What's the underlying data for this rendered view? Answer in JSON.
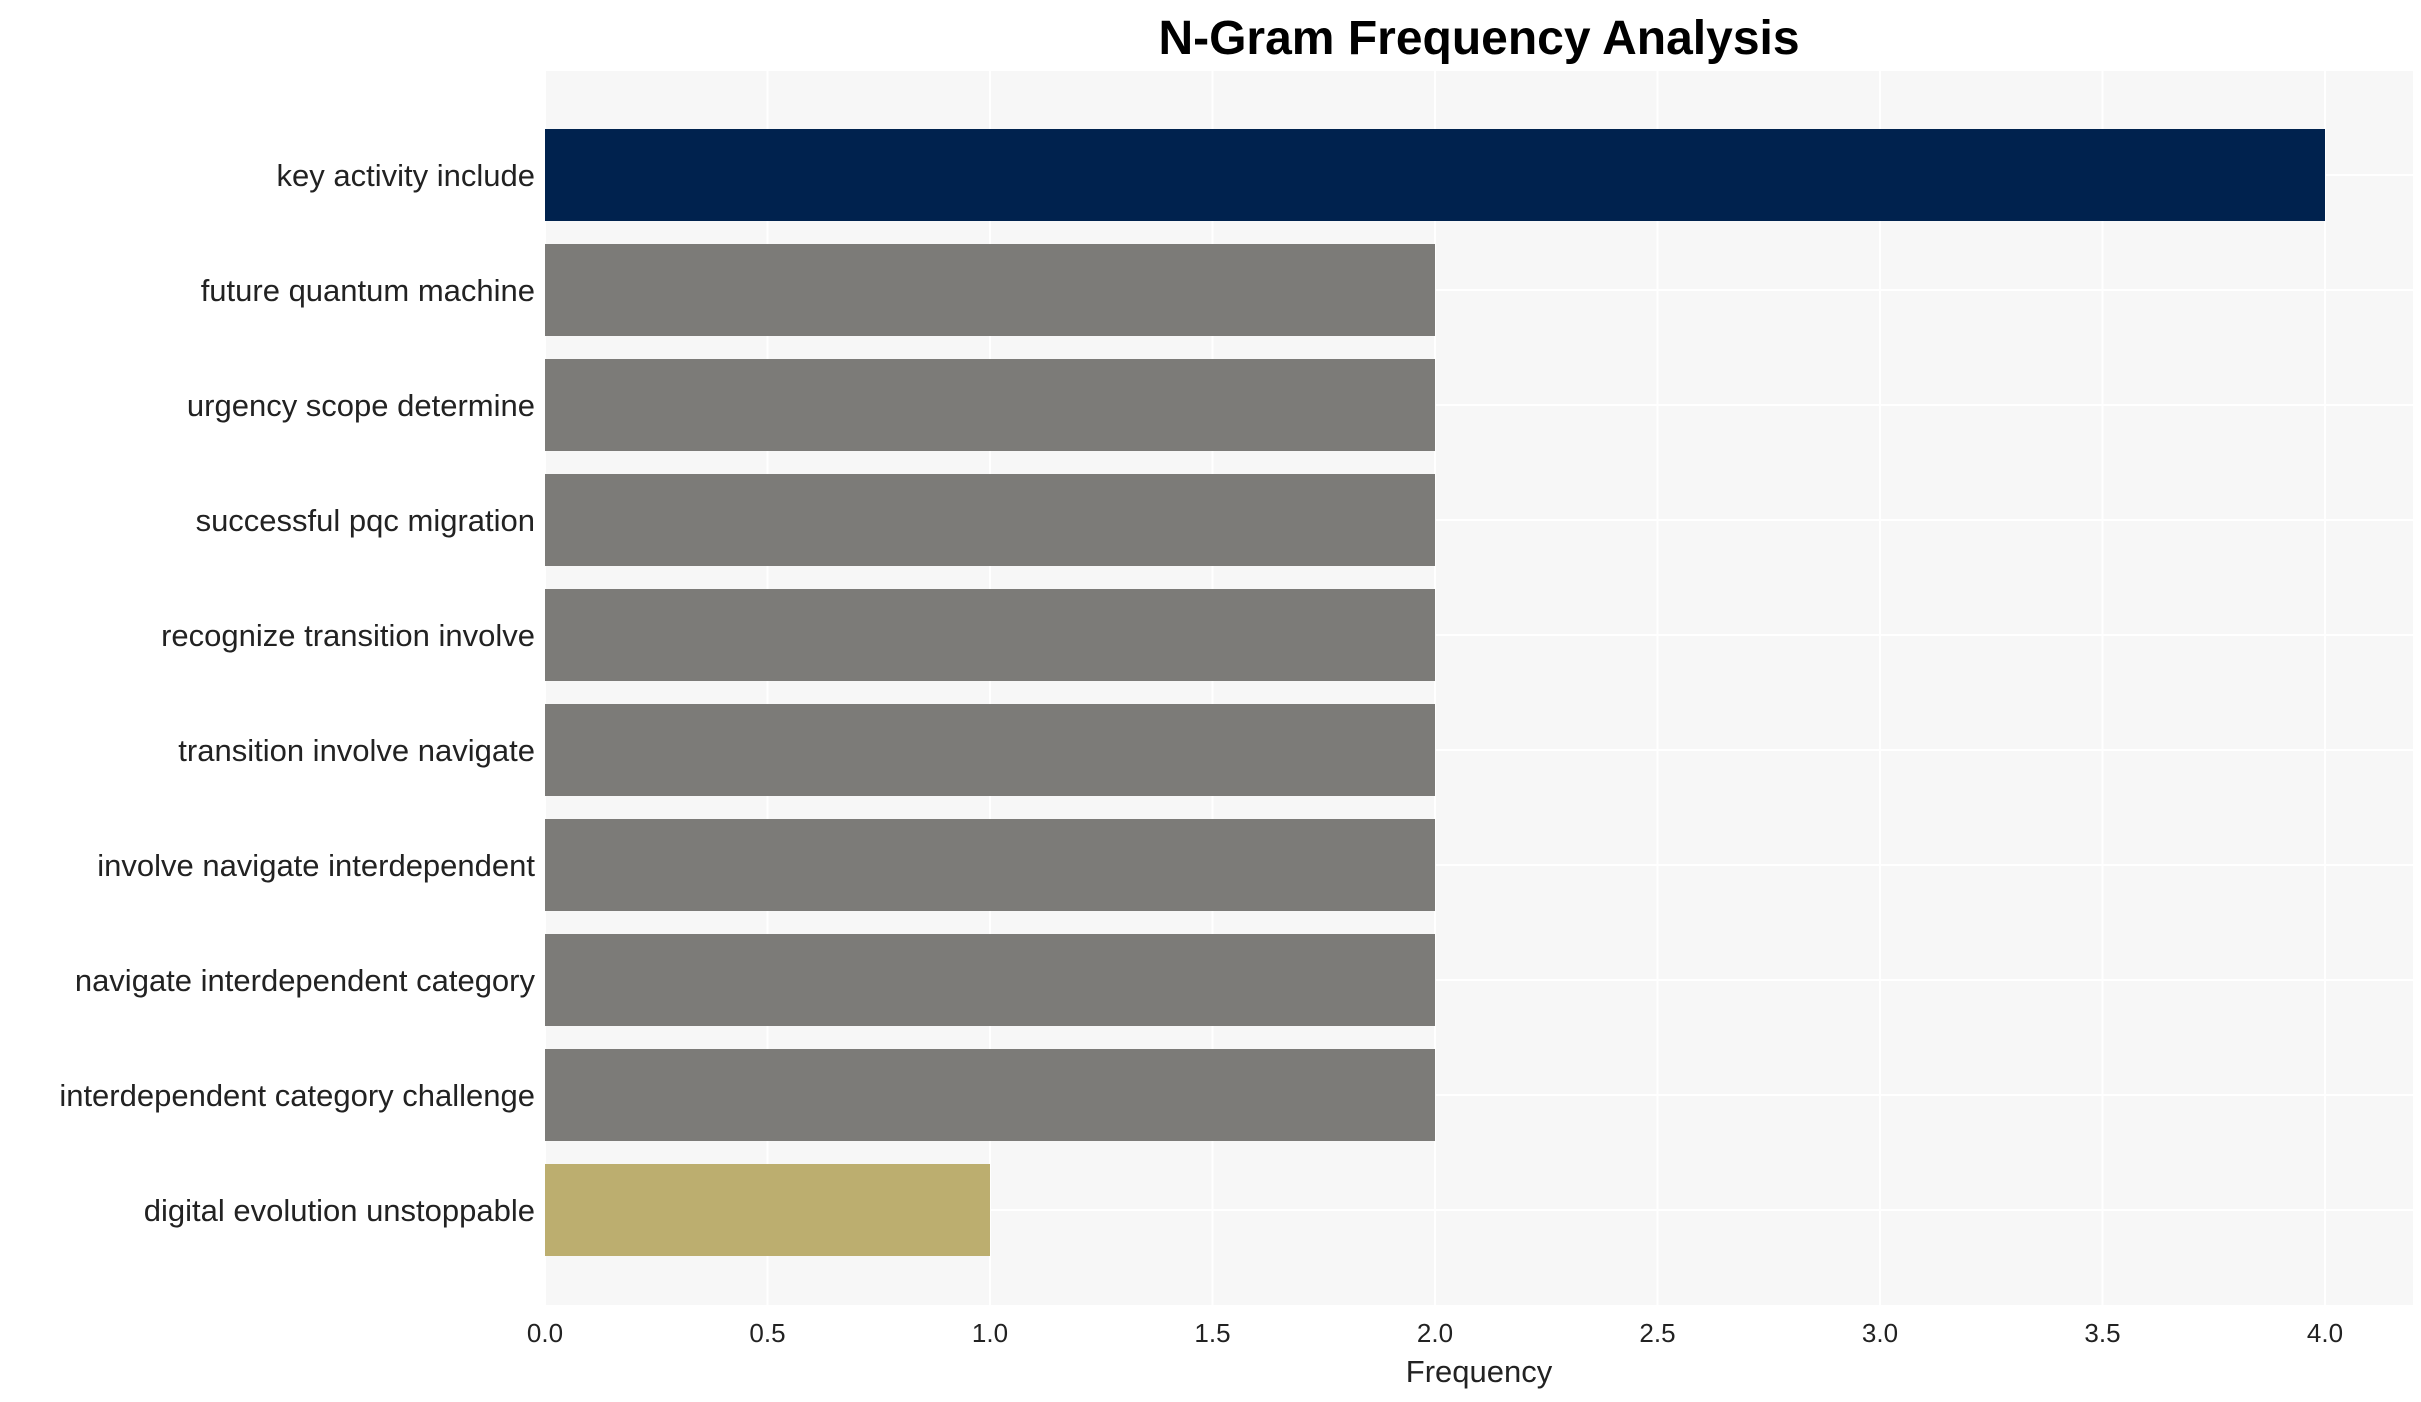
{
  "chart_data": {
    "type": "bar",
    "orientation": "horizontal",
    "title": "N-Gram Frequency Analysis",
    "xlabel": "Frequency",
    "ylabel": "",
    "xlim": [
      0,
      4.2
    ],
    "xticks": [
      "0.0",
      "0.5",
      "1.0",
      "1.5",
      "2.0",
      "2.5",
      "3.0",
      "3.5",
      "4.0"
    ],
    "grid": true,
    "categories": [
      "key activity include",
      "future quantum machine",
      "urgency scope determine",
      "successful pqc migration",
      "recognize transition involve",
      "transition involve navigate",
      "involve navigate interdependent",
      "navigate interdependent category",
      "interdependent category challenge",
      "digital evolution unstoppable"
    ],
    "values": [
      4,
      2,
      2,
      2,
      2,
      2,
      2,
      2,
      2,
      1
    ],
    "colors": [
      "#00224e",
      "#7c7b78",
      "#7c7b78",
      "#7c7b78",
      "#7c7b78",
      "#7c7b78",
      "#7c7b78",
      "#7c7b78",
      "#7c7b78",
      "#bcae6f"
    ],
    "background": "#f7f7f7"
  }
}
